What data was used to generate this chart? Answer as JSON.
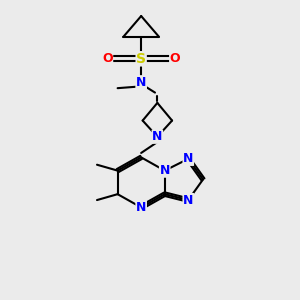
{
  "bg_color": "#ebebeb",
  "atom_colors": {
    "C": "#000000",
    "N": "#0000ff",
    "O": "#ff0000",
    "S": "#cccc00"
  },
  "bond_color": "#000000",
  "line_width": 1.5,
  "font_size": 9
}
